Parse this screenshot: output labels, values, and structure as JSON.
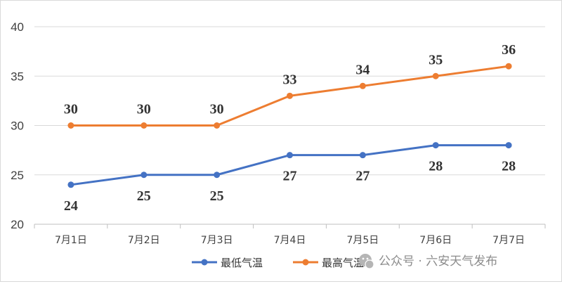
{
  "chart_data": {
    "type": "line",
    "title": "",
    "xlabel": "",
    "ylabel": "",
    "categories": [
      "7月1日",
      "7月2日",
      "7月3日",
      "7月4日",
      "7月5日",
      "7月6日",
      "7月7日"
    ],
    "ylim": [
      20,
      40
    ],
    "yticks": [
      20,
      25,
      30,
      35,
      40
    ],
    "grid": true,
    "legend_position": "bottom",
    "series": [
      {
        "name": "最低气温",
        "values": [
          24,
          25,
          25,
          27,
          27,
          28,
          28
        ],
        "color": "#4472C4",
        "label_position": "below"
      },
      {
        "name": "最高气温",
        "values": [
          30,
          30,
          30,
          33,
          34,
          35,
          36
        ],
        "color": "#ED7D31",
        "label_position": "above"
      }
    ]
  },
  "watermark": {
    "icon": "wechat-icon",
    "text": "公众号 · 六安天气发布"
  }
}
